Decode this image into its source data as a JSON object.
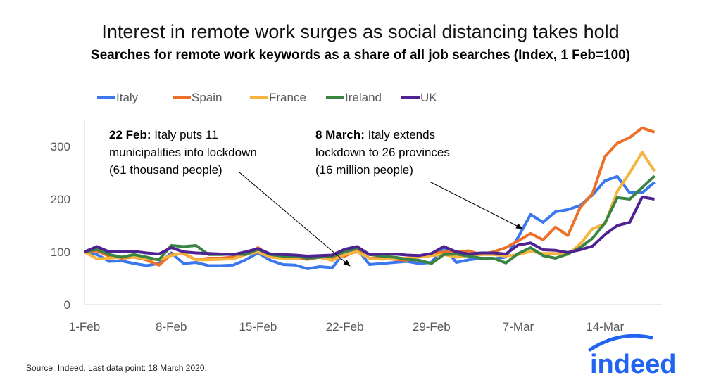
{
  "chart_data": {
    "type": "line",
    "title": "Interest in remote work surges as social distancing takes hold",
    "subtitle": "Searches for remote work keywords as a share of all job searches (Index, 1 Feb=100)",
    "x_start": "1-Feb-2020",
    "x_end": "18-Mar-2020",
    "x_ticks": [
      "1-Feb",
      "8-Feb",
      "15-Feb",
      "22-Feb",
      "29-Feb",
      "7-Mar",
      "14-Mar"
    ],
    "y_ticks": [
      "0",
      "100",
      "200",
      "300"
    ],
    "ylim": [
      0,
      350
    ],
    "grid": false,
    "legend_position": "top",
    "series": [
      {
        "name": "Italy",
        "color": "#3B78EE",
        "values": [
          100,
          95,
          82,
          83,
          78,
          74,
          78,
          98,
          78,
          80,
          74,
          74,
          75,
          85,
          98,
          84,
          76,
          75,
          68,
          72,
          70,
          100,
          106,
          76,
          78,
          80,
          82,
          78,
          80,
          110,
          80,
          85,
          88,
          87,
          90,
          128,
          171,
          156,
          176,
          180,
          188,
          208,
          235,
          243,
          212,
          212,
          232
        ]
      },
      {
        "name": "Spain",
        "color": "#EC7028",
        "values": [
          100,
          102,
          92,
          88,
          90,
          85,
          75,
          95,
          97,
          85,
          88,
          88,
          90,
          95,
          108,
          92,
          90,
          88,
          86,
          90,
          88,
          92,
          102,
          88,
          88,
          86,
          84,
          92,
          96,
          100,
          100,
          102,
          95,
          100,
          108,
          121,
          135,
          123,
          147,
          131,
          184,
          211,
          281,
          306,
          317,
          335,
          327
        ]
      },
      {
        "name": "France",
        "color": "#F6B43F",
        "values": [
          100,
          87,
          88,
          90,
          90,
          87,
          85,
          93,
          98,
          85,
          85,
          86,
          87,
          95,
          100,
          90,
          88,
          88,
          90,
          90,
          84,
          95,
          100,
          88,
          86,
          88,
          88,
          90,
          93,
          95,
          90,
          93,
          95,
          95,
          92,
          95,
          101,
          97,
          97,
          95,
          115,
          144,
          153,
          215,
          250,
          289,
          253
        ]
      },
      {
        "name": "Ireland",
        "color": "#3A8443",
        "values": [
          100,
          105,
          95,
          90,
          95,
          90,
          85,
          112,
          110,
          112,
          95,
          95,
          96,
          95,
          105,
          95,
          92,
          92,
          88,
          90,
          92,
          100,
          108,
          95,
          92,
          90,
          86,
          84,
          78,
          95,
          96,
          92,
          88,
          88,
          79,
          97,
          108,
          93,
          88,
          96,
          108,
          126,
          155,
          203,
          200,
          222,
          244
        ]
      },
      {
        "name": "UK",
        "color": "#4E2290",
        "values": [
          100,
          110,
          100,
          100,
          101,
          98,
          96,
          108,
          100,
          98,
          97,
          96,
          95,
          100,
          106,
          96,
          95,
          94,
          92,
          93,
          94,
          105,
          110,
          95,
          96,
          96,
          94,
          93,
          97,
          110,
          100,
          96,
          98,
          98,
          96,
          113,
          117,
          104,
          103,
          99,
          104,
          111,
          133,
          150,
          156,
          204,
          200
        ]
      }
    ],
    "annotations": [
      {
        "bold": "22 Feb:",
        "lines": [
          " Italy puts 11",
          "municipalities into lockdown",
          "(61 thousand people)"
        ],
        "date": "22-Feb"
      },
      {
        "bold": "8 March:",
        "lines": [
          " Italy extends",
          "lockdown to 26 provinces",
          "(16 million people)"
        ],
        "date": "7-Mar"
      }
    ],
    "source": "Source: Indeed. Last data point: 18 March 2020.",
    "logo": "indeed",
    "logo_color": "#2164F3"
  }
}
